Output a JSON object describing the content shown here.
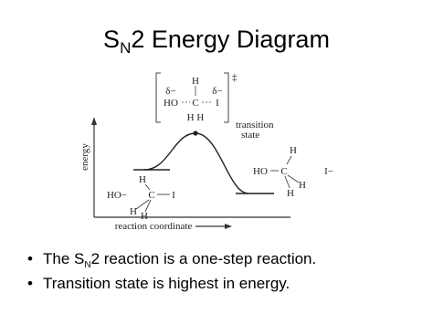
{
  "title": {
    "s": "S",
    "sub": "N",
    "rest": "2 Energy Diagram"
  },
  "diagram": {
    "y_axis_label": "energy",
    "x_axis_label": "reaction coordinate",
    "transition_state_label": [
      "transition",
      "state"
    ],
    "transition_state": {
      "h_top": "H",
      "delta_left": "δ−",
      "delta_right": "δ−",
      "ho": "HO",
      "c": "C",
      "i": "I",
      "h_bottom": "H H",
      "double_dagger": "‡"
    },
    "reactant": {
      "h_top": "H",
      "ho": "HO−",
      "c": "C",
      "i": "I",
      "h_left": "H",
      "h_right": "H"
    },
    "product": {
      "h_top": "H",
      "ho": "HO",
      "c": "C",
      "i": "I−",
      "h_left": "H",
      "h_right": "H"
    }
  },
  "bullets": [
    {
      "before": "The S",
      "sub": "N",
      "after": "2 reaction is a one-step reaction."
    },
    {
      "text": "Transition state is highest in energy."
    }
  ]
}
